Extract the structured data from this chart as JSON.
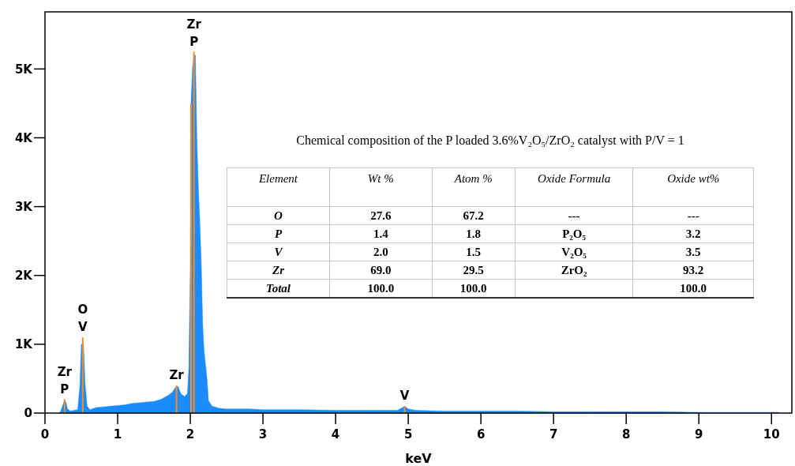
{
  "chart_data": {
    "type": "area",
    "xlabel": "keV",
    "xlim": [
      0,
      10.28
    ],
    "xticks": [
      0,
      1,
      2,
      3,
      4,
      5,
      6,
      7,
      8,
      9,
      10
    ],
    "ylim": [
      0,
      5830
    ],
    "yticks": [
      0,
      {
        "value": 1000,
        "label": "1K"
      },
      {
        "value": 2000,
        "label": "2K"
      },
      {
        "value": 3000,
        "label": "3K"
      },
      {
        "value": 4000,
        "label": "4K"
      },
      {
        "value": 5000,
        "label": "5K"
      }
    ],
    "series": [
      {
        "color": "#1a8cff",
        "x": [
          0.2,
          0.22,
          0.25,
          0.27,
          0.29,
          0.31,
          0.35,
          0.4,
          0.45,
          0.48,
          0.5,
          0.53,
          0.55,
          0.58,
          0.62,
          0.7,
          0.8,
          0.9,
          1.0,
          1.1,
          1.2,
          1.3,
          1.4,
          1.5,
          1.6,
          1.7,
          1.75,
          1.8,
          1.83,
          1.87,
          1.92,
          1.96,
          1.98,
          2.0,
          2.01,
          2.03,
          2.05,
          2.07,
          2.09,
          2.11,
          2.13,
          2.15,
          2.17,
          2.19,
          2.21,
          2.23,
          2.25,
          2.3,
          2.4,
          2.5,
          2.6,
          2.8,
          3,
          3.5,
          4,
          4.5,
          4.85,
          4.92,
          4.95,
          5.0,
          5.1,
          5.5,
          6,
          6.5,
          7,
          7.5,
          8,
          8.5,
          9,
          9.5,
          10.1
        ],
        "values": [
          0,
          40,
          130,
          200,
          150,
          60,
          30,
          40,
          50,
          400,
          1000,
          1000,
          450,
          100,
          50,
          80,
          90,
          100,
          110,
          120,
          140,
          150,
          160,
          170,
          200,
          260,
          300,
          380,
          390,
          280,
          240,
          280,
          650,
          2100,
          4500,
          5000,
          5200,
          5200,
          4000,
          3300,
          2800,
          2200,
          1300,
          900,
          700,
          500,
          180,
          100,
          70,
          60,
          60,
          60,
          50,
          50,
          40,
          40,
          40,
          80,
          100,
          60,
          40,
          30,
          30,
          30,
          20,
          20,
          20,
          20,
          10,
          10,
          10
        ]
      },
      {
        "type": "bar",
        "color": "#ff8c1a",
        "x": [
          0.27,
          0.52,
          1.81,
          2.01,
          2.05,
          4.95
        ],
        "values": [
          200,
          1100,
          400,
          4500,
          5250,
          100
        ]
      }
    ],
    "annotations": [
      {
        "text": "P",
        "x": 0.27,
        "y": 200
      },
      {
        "text": "Zr",
        "x": 0.27,
        "y": 200
      },
      {
        "text": "V",
        "x": 0.52,
        "y": 1100
      },
      {
        "text": "O",
        "x": 0.52,
        "y": 1100
      },
      {
        "text": "Zr",
        "x": 1.81,
        "y": 400
      },
      {
        "text": "P",
        "x": 2.05,
        "y": 5250
      },
      {
        "text": "Zr",
        "x": 2.05,
        "y": 5250
      },
      {
        "text": "V",
        "x": 4.95,
        "y": 100
      },
      "Chemical composition of the P loaded 3.6%V₂O₅/ZrO₂ catalyst with P/V = 1",
      "Element",
      "Wt %",
      "Atom %",
      "Oxide Formula",
      "Oxide wt%",
      "O",
      "27.6",
      "67.2",
      "---",
      "---",
      "P",
      "1.4",
      "1.8",
      "P₂O₅",
      "3.2",
      "V",
      "2.0",
      "1.5",
      "V₂O₅",
      "3.5",
      "Zr",
      "69.0",
      "29.5",
      "ZrO₂",
      "93.2",
      "Total",
      "100.0",
      "100.0",
      "100.0"
    ]
  }
}
